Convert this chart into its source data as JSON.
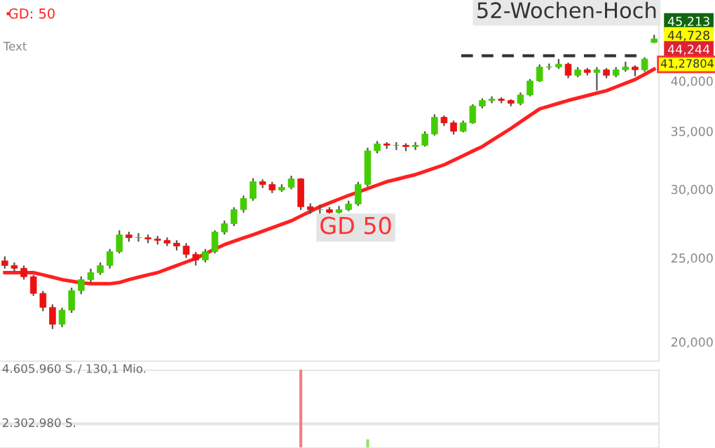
{
  "chart_data": [
    {
      "type": "candlestick",
      "log": true,
      "categories": [
        null,
        null,
        null,
        null,
        null,
        null,
        null,
        null,
        null,
        null,
        null,
        null,
        null,
        null,
        null,
        null,
        null,
        null,
        null,
        null,
        null,
        null,
        null,
        null,
        null,
        null,
        null,
        null,
        null,
        null,
        null,
        null,
        null,
        null,
        null,
        null,
        null,
        null,
        null,
        null,
        null,
        null,
        null,
        null,
        null,
        null,
        null,
        null,
        null,
        null,
        null,
        null,
        null,
        null,
        null,
        null,
        null,
        null,
        null,
        null,
        null,
        null,
        null,
        null,
        null,
        null,
        null,
        null,
        null
      ],
      "ohlc": [
        [
          24800,
          25100,
          24300,
          24500
        ],
        [
          24500,
          24700,
          24100,
          24320
        ],
        [
          24320,
          24500,
          23600,
          23780
        ],
        [
          23780,
          23900,
          22600,
          22750
        ],
        [
          22750,
          22900,
          21700,
          21920
        ],
        [
          21920,
          22100,
          20700,
          20960
        ],
        [
          20960,
          21900,
          20800,
          21760
        ],
        [
          21760,
          23100,
          21600,
          22920
        ],
        [
          22920,
          23800,
          22700,
          23600
        ],
        [
          23600,
          24300,
          23400,
          24040
        ],
        [
          24040,
          24700,
          23900,
          24500
        ],
        [
          24500,
          25600,
          24300,
          25420
        ],
        [
          25420,
          26900,
          25300,
          26580
        ],
        [
          26580,
          26800,
          26100,
          26380
        ],
        [
          26380,
          26700,
          26100,
          26380
        ],
        [
          26380,
          26600,
          26000,
          26290
        ],
        [
          26290,
          26500,
          25900,
          26190
        ],
        [
          26190,
          26400,
          25800,
          26000
        ],
        [
          26000,
          26200,
          25500,
          25800
        ],
        [
          25800,
          26000,
          25000,
          25240
        ],
        [
          25240,
          25400,
          24500,
          24860
        ],
        [
          24860,
          25600,
          24700,
          25420
        ],
        [
          25420,
          26900,
          25300,
          26780
        ],
        [
          26780,
          27600,
          26600,
          27380
        ],
        [
          27380,
          28600,
          27200,
          28420
        ],
        [
          28420,
          29500,
          28200,
          29280
        ],
        [
          29280,
          30900,
          29100,
          30610
        ],
        [
          30610,
          30800,
          30100,
          30380
        ],
        [
          30380,
          30600,
          29700,
          29940
        ],
        [
          29940,
          30400,
          29800,
          30160
        ],
        [
          30160,
          31100,
          30000,
          30840
        ],
        [
          30840,
          30900,
          28400,
          28640
        ],
        [
          28640,
          28900,
          28100,
          28420
        ],
        [
          28420,
          28800,
          28100,
          28420
        ],
        [
          28420,
          28600,
          27900,
          28210
        ],
        [
          28210,
          28700,
          28000,
          28420
        ],
        [
          28420,
          29100,
          28300,
          28850
        ],
        [
          28850,
          30600,
          28700,
          30380
        ],
        [
          30380,
          33500,
          30200,
          33230
        ],
        [
          33230,
          34100,
          33000,
          33840
        ],
        [
          33840,
          34000,
          33400,
          33720
        ],
        [
          33720,
          34000,
          33300,
          33720
        ],
        [
          33720,
          33900,
          33200,
          33600
        ],
        [
          33600,
          34000,
          33300,
          33720
        ],
        [
          33720,
          35000,
          33600,
          34740
        ],
        [
          34740,
          36600,
          34600,
          36320
        ],
        [
          36320,
          36500,
          35500,
          35790
        ],
        [
          35790,
          36000,
          34700,
          35000
        ],
        [
          35000,
          36000,
          34900,
          35790
        ],
        [
          35790,
          37600,
          35700,
          37420
        ],
        [
          37420,
          38200,
          37200,
          37980
        ],
        [
          37980,
          38400,
          37700,
          38120
        ],
        [
          38120,
          38300,
          37700,
          37980
        ],
        [
          37980,
          38100,
          37400,
          37690
        ],
        [
          37690,
          38800,
          37500,
          38540
        ],
        [
          38540,
          40200,
          38400,
          40000
        ],
        [
          40000,
          41800,
          39900,
          41510
        ],
        [
          41510,
          41900,
          41200,
          41510
        ],
        [
          41510,
          42400,
          41300,
          41820
        ],
        [
          41820,
          42000,
          40300,
          40600
        ],
        [
          40600,
          41500,
          40400,
          41200
        ],
        [
          41200,
          41400,
          40600,
          40900
        ],
        [
          40900,
          41500,
          39000,
          41200
        ],
        [
          41200,
          41400,
          40300,
          40600
        ],
        [
          40600,
          41500,
          40400,
          41200
        ],
        [
          41200,
          42100,
          41000,
          41510
        ],
        [
          41510,
          41700,
          40500,
          41200
        ],
        [
          41200,
          42600,
          41000,
          42400
        ],
        [
          44300,
          45213,
          44244,
          44728
        ]
      ],
      "series": [
        {
          "name": "GD: 50",
          "type": "line",
          "color": "#ff2020",
          "values": [
            24040,
            24040,
            24040,
            24040,
            23900,
            23750,
            23600,
            23500,
            23400,
            23340,
            23340,
            23340,
            23420,
            23600,
            23750,
            23900,
            24040,
            24270,
            24500,
            24730,
            24960,
            25280,
            25600,
            25900,
            26130,
            26360,
            26580,
            26830,
            27080,
            27340,
            27590,
            27940,
            28290,
            28640,
            28930,
            29220,
            29510,
            29780,
            30060,
            30330,
            30610,
            30800,
            31000,
            31190,
            31460,
            31730,
            32010,
            32400,
            32800,
            33200,
            33600,
            34150,
            34700,
            35260,
            35880,
            36500,
            37140,
            37420,
            37700,
            37980,
            38230,
            38480,
            38730,
            38980,
            39370,
            39760,
            40150,
            40710,
            41278.04
          ]
        }
      ],
      "ylim": [
        19000,
        49600
      ],
      "yticks": [
        {
          "value": 20000,
          "label": "20,000"
        },
        {
          "value": 25000,
          "label": "25,000"
        },
        {
          "value": 30000,
          "label": "30,000"
        },
        {
          "value": 35000,
          "label": "35,000"
        },
        {
          "value": 40000,
          "label": "40,000"
        }
      ],
      "tick_labels": "y",
      "grid": false,
      "legend": "top left",
      "ref_lines": [
        {
          "axis": "y",
          "value": 42770,
          "label": "52-Wochen-Hoch",
          "color": "#333333",
          "line_style": "dashed"
        }
      ],
      "annotations": [
        "Text",
        "GD 50",
        "45,213",
        "44,728",
        "44,244",
        "41,27804"
      ]
    },
    {
      "type": "bar",
      "categories": [
        null,
        null,
        null,
        null,
        null,
        null,
        null,
        null,
        null,
        null,
        null,
        null,
        null,
        null,
        null,
        null,
        null,
        null,
        null,
        null,
        null,
        null,
        null,
        null,
        null,
        null,
        null,
        null,
        null,
        null,
        null,
        null,
        null,
        null,
        null,
        null,
        null,
        null,
        null,
        null,
        null,
        null,
        null,
        null,
        null,
        null,
        null,
        null,
        null,
        null,
        null,
        null,
        null,
        null,
        null,
        null,
        null,
        null,
        null,
        null,
        null,
        null,
        null,
        null,
        null,
        null,
        null,
        null,
        null
      ],
      "values": [
        null,
        null,
        null,
        null,
        null,
        null,
        null,
        null,
        null,
        null,
        null,
        null,
        null,
        null,
        null,
        null,
        null,
        null,
        null,
        null,
        null,
        null,
        null,
        null,
        null,
        null,
        null,
        null,
        null,
        null,
        null,
        4600000,
        null,
        null,
        null,
        null,
        null,
        null,
        1640000,
        null,
        null,
        null,
        null,
        null,
        null,
        null,
        null,
        null,
        null,
        null,
        null,
        null,
        null,
        null,
        null,
        null,
        null,
        null,
        null,
        null,
        null,
        null,
        null,
        null,
        null,
        null,
        null,
        null,
        null
      ],
      "colors": [
        "#ee8080",
        "#ee8080",
        "#ee8080",
        "#ee8080",
        "#ee8080",
        "#ee8080",
        "#ee8080",
        "#ee8080",
        "#ee8080",
        "#ee8080",
        "#ee8080",
        "#ee8080",
        "#ee8080",
        "#ee8080",
        "#ee8080",
        "#ee8080",
        "#ee8080",
        "#ee8080",
        "#ee8080",
        "#ee8080",
        "#ee8080",
        "#ee8080",
        "#ee8080",
        "#ee8080",
        "#ee8080",
        "#ee8080",
        "#ee8080",
        "#ee8080",
        "#ee8080",
        "#ee8080",
        "#ee8080",
        "#ee8080",
        "#ee8080",
        "#ee8080",
        "#ee8080",
        "#ee8080",
        "#ee8080",
        "#ee8080",
        "#99dd66",
        "#ee8080",
        "#ee8080",
        "#ee8080",
        "#ee8080",
        "#ee8080",
        "#ee8080",
        "#ee8080",
        "#ee8080",
        "#ee8080",
        "#ee8080",
        "#ee8080",
        "#ee8080",
        "#ee8080",
        "#ee8080",
        "#ee8080",
        "#ee8080",
        "#ee8080",
        "#ee8080",
        "#ee8080",
        "#ee8080",
        "#ee8080",
        "#ee8080",
        "#ee8080",
        "#ee8080",
        "#ee8080",
        "#ee8080",
        "#ee8080",
        "#ee8080",
        "#ee8080",
        "#ee8080"
      ],
      "ylim": [
        1270000,
        4605960
      ],
      "yticks": [
        {
          "value": 2302980,
          "label": "2.302.980 S."
        },
        {
          "value": 4605960,
          "label": "4.605.960 S."
        }
      ],
      "annotations": [
        "/ 130,1 Mio."
      ],
      "tick_labels": "y",
      "grid": "y"
    }
  ]
}
